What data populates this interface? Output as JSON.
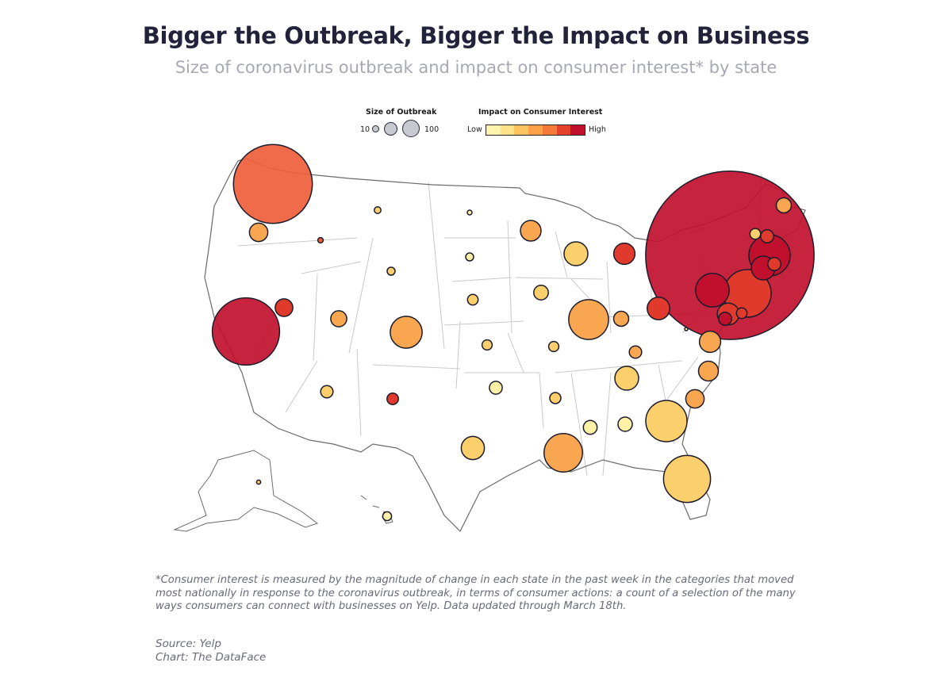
{
  "title": "Bigger the Outbreak, Bigger the Impact on Business",
  "subtitle": "Size of coronavirus outbreak and impact on consumer interest* by state",
  "legend": {
    "size_title": "Size of Outbreak",
    "size_min_label": "10",
    "size_max_label": "100",
    "color_title": "Impact on Consumer Interest",
    "color_low_label": "Low",
    "color_high_label": "High",
    "color_scale": [
      "#fff3b0",
      "#fee38a",
      "#fcc45e",
      "#fba248",
      "#f47a3a",
      "#e4432c",
      "#c1102e"
    ]
  },
  "colors": {
    "lvl1": "#fff0a8",
    "lvl2": "#fbcf6c",
    "lvl3": "#f9a650",
    "lvl4": "#ef5e3a",
    "lvl5": "#e03a2c",
    "lvl6": "#c1102e",
    "bubble_stroke": "#1b1b2b",
    "state_fill": "#ffffff",
    "state_stroke": "#c9c9c9",
    "nation_stroke": "#6a6a6a"
  },
  "map_data": {
    "type": "bubble-map",
    "region": "United States",
    "bubbles": [
      {
        "state": "WA",
        "cases": 1100,
        "impact": "lvl4"
      },
      {
        "state": "OR",
        "cases": 60,
        "impact": "lvl3"
      },
      {
        "state": "CA",
        "cases": 800,
        "impact": "lvl6"
      },
      {
        "state": "ID",
        "cases": 5,
        "impact": "lvl4"
      },
      {
        "state": "NV",
        "cases": 55,
        "impact": "lvl5"
      },
      {
        "state": "MT",
        "cases": 8,
        "impact": "lvl2"
      },
      {
        "state": "WY",
        "cases": 11,
        "impact": "lvl2"
      },
      {
        "state": "UT",
        "cases": 45,
        "impact": "lvl3"
      },
      {
        "state": "AZ",
        "cases": 27,
        "impact": "lvl2"
      },
      {
        "state": "CO",
        "cases": 180,
        "impact": "lvl3"
      },
      {
        "state": "NM",
        "cases": 23,
        "impact": "lvl5"
      },
      {
        "state": "ND",
        "cases": 4,
        "impact": "lvl1"
      },
      {
        "state": "SD",
        "cases": 11,
        "impact": "lvl1"
      },
      {
        "state": "NE",
        "cases": 20,
        "impact": "lvl2"
      },
      {
        "state": "KS",
        "cases": 18,
        "impact": "lvl2"
      },
      {
        "state": "OK",
        "cases": 29,
        "impact": "lvl1"
      },
      {
        "state": "TX",
        "cases": 95,
        "impact": "lvl2"
      },
      {
        "state": "MN",
        "cases": 75,
        "impact": "lvl3"
      },
      {
        "state": "IA",
        "cases": 38,
        "impact": "lvl2"
      },
      {
        "state": "MO",
        "cases": 18,
        "impact": "lvl2"
      },
      {
        "state": "AR",
        "cases": 22,
        "impact": "lvl2"
      },
      {
        "state": "LA",
        "cases": 260,
        "impact": "lvl3"
      },
      {
        "state": "WI",
        "cases": 100,
        "impact": "lvl2"
      },
      {
        "state": "IL",
        "cases": 280,
        "impact": "lvl3"
      },
      {
        "state": "MI",
        "cases": 80,
        "impact": "lvl5"
      },
      {
        "state": "IN",
        "cases": 40,
        "impact": "lvl3"
      },
      {
        "state": "OH",
        "cases": 90,
        "impact": "lvl5"
      },
      {
        "state": "KY",
        "cases": 27,
        "impact": "lvl3"
      },
      {
        "state": "TN",
        "cases": 100,
        "impact": "lvl2"
      },
      {
        "state": "MS",
        "cases": 34,
        "impact": "lvl1"
      },
      {
        "state": "AL",
        "cases": 36,
        "impact": "lvl1"
      },
      {
        "state": "GA",
        "cases": 300,
        "impact": "lvl2"
      },
      {
        "state": "FL",
        "cases": 390,
        "impact": "lvl2"
      },
      {
        "state": "SC",
        "cases": 60,
        "impact": "lvl3"
      },
      {
        "state": "NC",
        "cases": 70,
        "impact": "lvl3"
      },
      {
        "state": "VA",
        "cases": 80,
        "impact": "lvl3"
      },
      {
        "state": "WV",
        "cases": 1,
        "impact": "lvl1"
      },
      {
        "state": "PA",
        "cases": 200,
        "impact": "lvl6"
      },
      {
        "state": "NY",
        "cases": 5000,
        "impact": "lvl6"
      },
      {
        "state": "NJ",
        "cases": 400,
        "impact": "lvl5"
      },
      {
        "state": "MD",
        "cases": 85,
        "impact": "lvl5"
      },
      {
        "state": "DC",
        "cases": 30,
        "impact": "lvl6"
      },
      {
        "state": "DE",
        "cases": 20,
        "impact": "lvl5"
      },
      {
        "state": "CT",
        "cases": 100,
        "impact": "lvl6"
      },
      {
        "state": "RI",
        "cases": 30,
        "impact": "lvl5"
      },
      {
        "state": "MA",
        "cases": 300,
        "impact": "lvl6"
      },
      {
        "state": "NH",
        "cases": 30,
        "impact": "lvl5"
      },
      {
        "state": "VT",
        "cases": 20,
        "impact": "lvl2"
      },
      {
        "state": "ME",
        "cases": 40,
        "impact": "lvl3"
      },
      {
        "state": "AK",
        "cases": 3,
        "impact": "lvl2"
      },
      {
        "state": "HI",
        "cases": 14,
        "impact": "lvl1"
      }
    ]
  },
  "footnote": "*Consumer interest is measured by the magnitude of change in each state in the past week in the categories that moved most nationally in response to the coronavirus outbreak, in terms of consumer actions: a count of a selection of the many ways consumers can connect with businesses on Yelp. Data updated through March 18th.",
  "source": "Source: Yelp",
  "credit": "Chart: The DataFace"
}
